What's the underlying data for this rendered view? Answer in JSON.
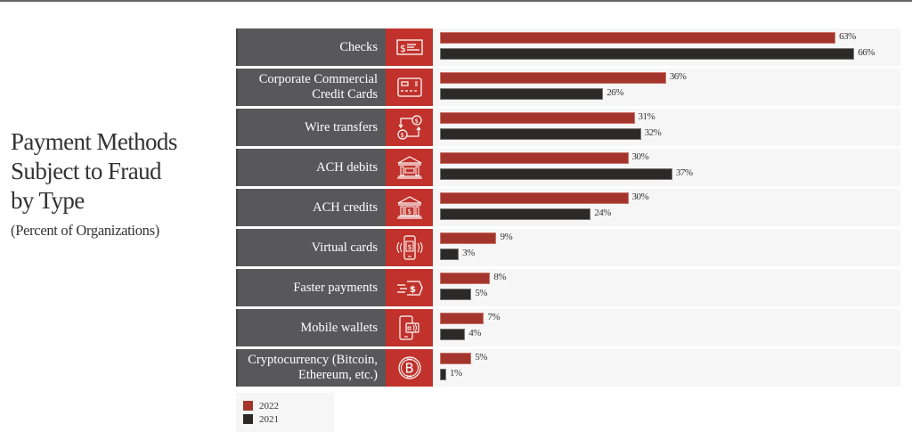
{
  "title": "Payment Methods Subject to Fraud by Type",
  "title_lines": [
    "Payment Methods",
    "Subject to Fraud",
    "by Type"
  ],
  "subtitle": "(Percent of Organizations)",
  "colors": {
    "2022": "#a3352c",
    "2021": "#2b2a29",
    "icon_bg": "#c0322b",
    "label_bg": "#58585a",
    "panel_bg": "#f6f6f6"
  },
  "legend": [
    {
      "label": "2022",
      "color": "#a3352c"
    },
    {
      "label": "2021",
      "color": "#2b2a29"
    }
  ],
  "rows": [
    {
      "label_lines": [
        "Checks"
      ],
      "icon": "check-icon",
      "v2022": 63,
      "v2021": 66,
      "t2022": "63%",
      "t2021": "66%"
    },
    {
      "label_lines": [
        "Corporate Commercial",
        "Credit Cards"
      ],
      "icon": "credit-card-icon",
      "v2022": 36,
      "v2021": 26,
      "t2022": "36%",
      "t2021": "26%"
    },
    {
      "label_lines": [
        "Wire transfers"
      ],
      "icon": "wire-transfer-icon",
      "v2022": 31,
      "v2021": 32,
      "t2022": "31%",
      "t2021": "32%"
    },
    {
      "label_lines": [
        "ACH debits"
      ],
      "icon": "bank-icon",
      "v2022": 30,
      "v2021": 37,
      "t2022": "30%",
      "t2021": "37%"
    },
    {
      "label_lines": [
        "ACH credits"
      ],
      "icon": "bank-dollar-icon",
      "v2022": 30,
      "v2021": 24,
      "t2022": "30%",
      "t2021": "24%"
    },
    {
      "label_lines": [
        "Virtual cards"
      ],
      "icon": "phone-payment-icon",
      "v2022": 9,
      "v2021": 3,
      "t2022": "9%",
      "t2021": "3%"
    },
    {
      "label_lines": [
        "Faster payments"
      ],
      "icon": "fast-money-icon",
      "v2022": 8,
      "v2021": 5,
      "t2022": "8%",
      "t2021": "5%"
    },
    {
      "label_lines": [
        "Mobile wallets"
      ],
      "icon": "mobile-wallet-icon",
      "v2022": 7,
      "v2021": 4,
      "t2022": "7%",
      "t2021": "4%"
    },
    {
      "label_lines": [
        "Cryptocurrency (Bitcoin,",
        "Ethereum, etc.)"
      ],
      "icon": "bitcoin-icon",
      "v2022": 5,
      "v2021": 1,
      "t2022": "5%",
      "t2021": "1%"
    }
  ],
  "chart_data": {
    "type": "bar",
    "orientation": "horizontal",
    "title": "Payment Methods Subject to Fraud by Type",
    "subtitle": "(Percent of Organizations)",
    "categories": [
      "Checks",
      "Corporate Commercial Credit Cards",
      "Wire transfers",
      "ACH debits",
      "ACH credits",
      "Virtual cards",
      "Faster payments",
      "Mobile wallets",
      "Cryptocurrency (Bitcoin, Ethereum, etc.)"
    ],
    "series": [
      {
        "name": "2022",
        "values": [
          63,
          36,
          31,
          30,
          30,
          9,
          8,
          7,
          5
        ]
      },
      {
        "name": "2021",
        "values": [
          66,
          26,
          32,
          37,
          24,
          3,
          5,
          4,
          1
        ]
      }
    ],
    "xlabel": "",
    "ylabel": "",
    "unit": "%",
    "xlim": [
      0,
      72
    ],
    "grid": false,
    "legend_position": "bottom-left",
    "data_labels": true
  }
}
